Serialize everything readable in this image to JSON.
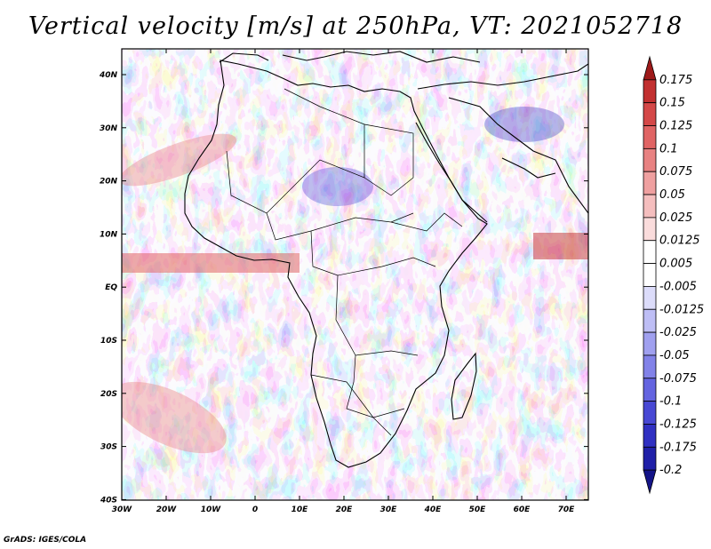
{
  "title": "Vertical velocity [m/s] at 250hPa, VT: 2021052718",
  "credit": "GrADS: IGES/COLA",
  "map": {
    "lat_labels": [
      "40N",
      "30N",
      "20N",
      "10N",
      "EQ",
      "10S",
      "20S",
      "30S",
      "40S"
    ],
    "lon_labels": [
      "30W",
      "20W",
      "10W",
      "0",
      "10E",
      "20E",
      "30E",
      "40E",
      "50E",
      "60E",
      "70E"
    ]
  },
  "colorbar": {
    "labels": [
      "0.175",
      "0.15",
      "0.125",
      "0.1",
      "0.075",
      "0.05",
      "0.025",
      "0.0125",
      "0.005",
      "-0.005",
      "-0.0125",
      "-0.025",
      "-0.05",
      "-0.075",
      "-0.1",
      "-0.125",
      "-0.175",
      "-0.2"
    ],
    "colors": [
      "#9e1a1a",
      "#c23030",
      "#d44848",
      "#e06464",
      "#e88282",
      "#efa0a0",
      "#f5bebe",
      "#fadcdc",
      "#ffffff",
      "#ffffff",
      "#dcdcfa",
      "#bebef5",
      "#a0a0ef",
      "#8282e8",
      "#6464e0",
      "#4848d4",
      "#3030c2",
      "#2020a8",
      "#141488"
    ]
  },
  "palette": {
    "red": "#e06464",
    "blue": "#6464e0",
    "coast": "#000000"
  }
}
